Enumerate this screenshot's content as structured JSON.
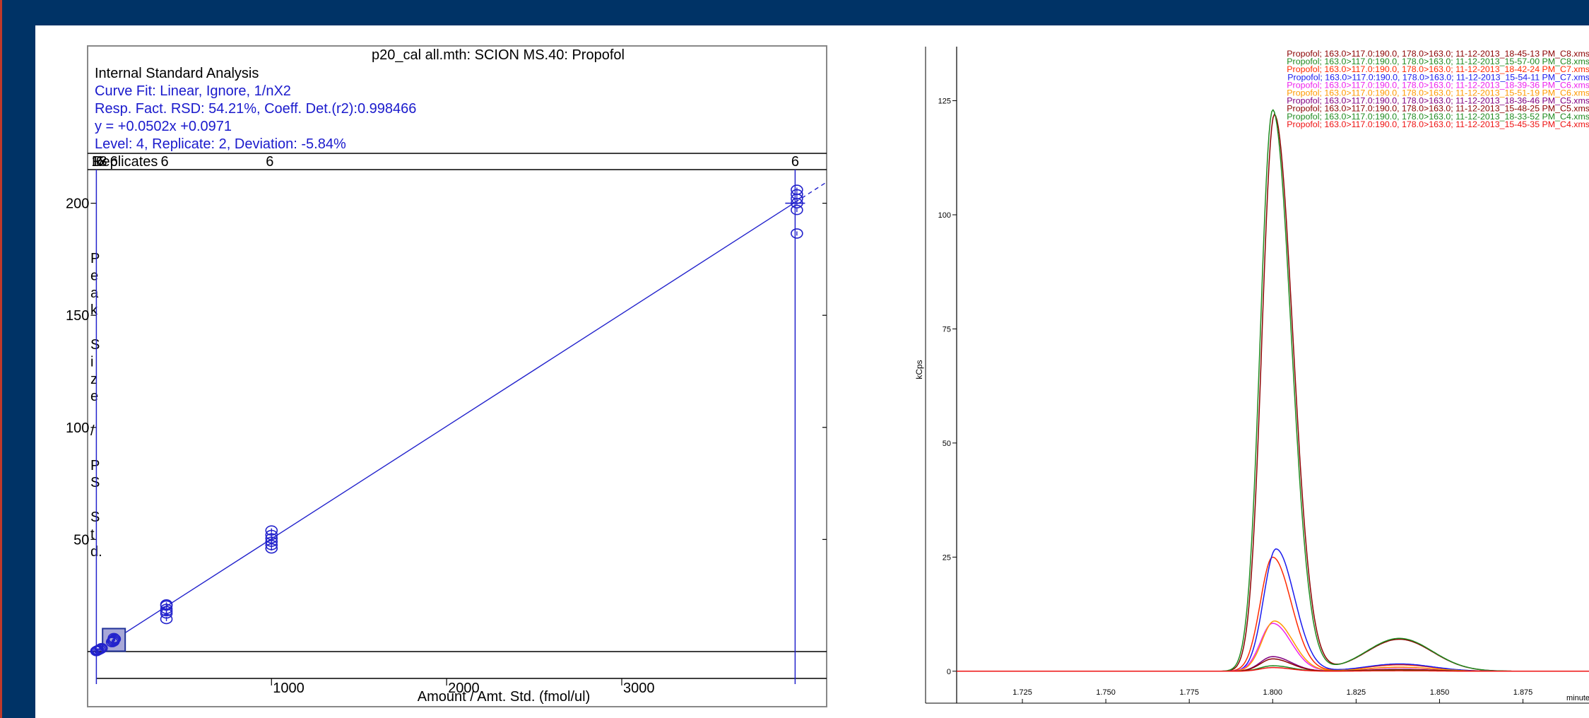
{
  "colors": {
    "header": "#003366",
    "calibration_blue": "#2222cc",
    "series_dark_red": "#8b0000",
    "series_green": "#1f8a1f"
  },
  "calibration": {
    "title": "p20_cal all.mth:  SCION MS.40:  Propofol",
    "info": [
      "Internal Standard Analysis",
      "Curve Fit: Linear, Ignore, 1/nX2",
      "Resp. Fact. RSD:  54.21%,    Coeff. Det.(r2):0.998466",
      "y =  +0.0502x +0.0971",
      "Level:  4,  Replicate:  2,  Deviation:  -5.84%"
    ],
    "replicates_label": "Replicates",
    "replicate_counts": [
      {
        "x": 0,
        "text": "18"
      },
      {
        "x": 20,
        "text": "6"
      },
      {
        "x": 100,
        "text": "6"
      },
      {
        "x": 390,
        "text": "6"
      },
      {
        "x": 990,
        "text": "6"
      },
      {
        "x": 3990,
        "text": "6"
      }
    ],
    "ylabel_chars": [
      "P",
      "e",
      "a",
      "k",
      "",
      "S",
      "i",
      "z",
      "e",
      "",
      "/",
      "",
      "P",
      "S",
      "",
      "S",
      "t",
      "d."
    ],
    "chart_data": {
      "type": "scatter",
      "title": "p20_cal all.mth:  SCION MS.40:  Propofol",
      "xlabel": "Amount / Amt. Std. (fmol/ul)",
      "ylabel": "Peak Size / PS Std.",
      "xlim": [
        -50,
        4170
      ],
      "ylim": [
        -12,
        215
      ],
      "x_ticks": [
        1000,
        2000,
        3000
      ],
      "y_ticks": [
        50,
        100,
        150,
        200
      ],
      "fit": {
        "slope": 0.0502,
        "intercept": 0.0971,
        "x_start": 0,
        "x_end": 3990,
        "x_dashed_end": 4170
      },
      "verticals": [
        0,
        3990
      ],
      "points": [
        {
          "x": 0,
          "y": 0.2
        },
        {
          "x": 5,
          "y": 0.4
        },
        {
          "x": 10,
          "y": 0.6
        },
        {
          "x": 18,
          "y": 0.9
        },
        {
          "x": 25,
          "y": 1.2
        },
        {
          "x": 30,
          "y": 1.5
        },
        {
          "x": 90,
          "y": 4.2
        },
        {
          "x": 95,
          "y": 4.8
        },
        {
          "x": 100,
          "y": 5.2
        },
        {
          "x": 105,
          "y": 5.6
        },
        {
          "x": 100,
          "y": 6.0
        },
        {
          "x": 98,
          "y": 4.5
        },
        {
          "x": 400,
          "y": 14.5
        },
        {
          "x": 400,
          "y": 17.0
        },
        {
          "x": 400,
          "y": 19.0
        },
        {
          "x": 400,
          "y": 20.5
        },
        {
          "x": 400,
          "y": 18.0
        },
        {
          "x": 400,
          "y": 21.0
        },
        {
          "x": 1000,
          "y": 47.5
        },
        {
          "x": 1000,
          "y": 49.0
        },
        {
          "x": 1000,
          "y": 50.5
        },
        {
          "x": 1000,
          "y": 52.0
        },
        {
          "x": 1000,
          "y": 54.0
        },
        {
          "x": 1000,
          "y": 46.0
        },
        {
          "x": 4000,
          "y": 186.5
        },
        {
          "x": 4000,
          "y": 197.0
        },
        {
          "x": 4000,
          "y": 200.0
        },
        {
          "x": 4000,
          "y": 202.0
        },
        {
          "x": 4000,
          "y": 204.0
        },
        {
          "x": 4000,
          "y": 206.0
        }
      ],
      "highlight": {
        "x": 100,
        "y": 5.2
      }
    }
  },
  "chromatogram": {
    "chart_data": {
      "type": "line",
      "xlabel": "minutes",
      "ylabel": "kCps",
      "xlim": [
        1.7053,
        1.895
      ],
      "ylim": [
        -7,
        137
      ],
      "x_ticks": [
        1.725,
        1.75,
        1.775,
        1.8,
        1.825,
        1.85,
        1.875
      ],
      "x_tick_labels": [
        "1.725",
        "1.750",
        "1.775",
        "1.800",
        "1.825",
        "1.850",
        "1.875"
      ],
      "y_ticks": [
        0,
        25,
        50,
        75,
        100,
        125
      ],
      "series": [
        {
          "name": "Propofol;  163.0>117.0:190.0, 178.0>163.0;  11-12-2013_18-45-13 PM_C8.xms",
          "color": "#8b0000",
          "peak": 122.0,
          "shoulder": 7.0,
          "peak_x": 1.8005
        },
        {
          "name": "Propofol;  163.0>117.0:190.0, 178.0>163.0;  11-12-2013_15-57-00 PM_C8.xms",
          "color": "#1f8a1f",
          "peak": 123.0,
          "shoulder": 7.2,
          "peak_x": 1.8
        },
        {
          "name": "Propofol;  163.0>117.0:190.0, 178.0>163.0;  11-12-2013_18-42-24 PM_C7.xms",
          "color": "#ff2a00",
          "peak": 25.0,
          "shoulder": 1.4,
          "peak_x": 1.8
        },
        {
          "name": "Propofol;  163.0>117.0:190.0, 178.0>163.0;  11-12-2013_15-54-11 PM_C7.xms",
          "color": "#1a1aee",
          "peak": 26.8,
          "shoulder": 1.6,
          "peak_x": 1.801
        },
        {
          "name": "Propofol;  163.0>117.0:190.0, 178.0>163.0;  11-12-2013_18-39-36 PM_C6.xms",
          "color": "#ee22ee",
          "peak": 10.5,
          "shoulder": 0.8,
          "peak_x": 1.8
        },
        {
          "name": "Propofol;  163.0>117.0:190.0, 178.0>163.0;  11-12-2013_15-51-19 PM_C6.xms",
          "color": "#ff9900",
          "peak": 11.0,
          "shoulder": 0.9,
          "peak_x": 1.8005
        },
        {
          "name": "Propofol;  163.0>117.0:190.0, 178.0>163.0;  11-12-2013_18-36-46 PM_C5.xms",
          "color": "#800080",
          "peak": 3.2,
          "shoulder": 0.4,
          "peak_x": 1.8
        },
        {
          "name": "Propofol;  163.0>117.0:190.0, 178.0>163.0;  11-12-2013_15-48-25 PM_C5.xms",
          "color": "#8b0000",
          "peak": 2.7,
          "shoulder": 0.35,
          "peak_x": 1.8
        },
        {
          "name": "Propofol;  163.0>117.0:190.0, 178.0>163.0;  11-12-2013_18-33-52 PM_C4.xms",
          "color": "#1f8a1f",
          "peak": 1.2,
          "shoulder": 0.2,
          "peak_x": 1.8
        },
        {
          "name": "Propofol;  163.0>117.0:190.0, 178.0>163.0;  11-12-2013_15-45-35 PM_C4.xms",
          "color": "#ee1111",
          "peak": 0.8,
          "shoulder": 0.1,
          "peak_x": 1.8
        }
      ]
    }
  }
}
